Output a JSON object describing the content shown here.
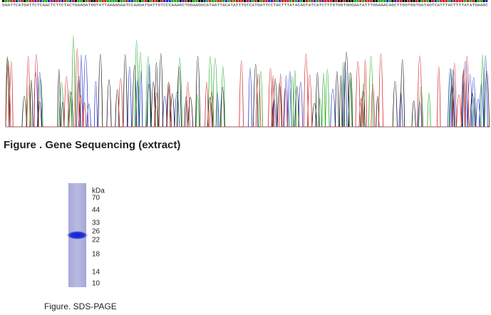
{
  "sequence": "GAATTCATGATTCTCAACTCTTCTACTGAAGATGGTATTAAAAGAATCCAAGATGATTGTCCCAAAGCTGGAAGGCATAATTACATATTTGTCATGATTCCTACTTTATACAGTATCATCTTTGTGGTGGGAATATTTGGAAACAGCTTGGTGGTGATAGTCATTTACTTTTATATGAAGC",
  "figures": [
    {
      "caption": "Figure . Gene Sequencing (extract)"
    },
    {
      "caption": "Figure. SDS-PAGE"
    }
  ],
  "gel": {
    "unit": "kDa",
    "markers": [
      70,
      44,
      33,
      26,
      22,
      18,
      14,
      10
    ]
  }
}
